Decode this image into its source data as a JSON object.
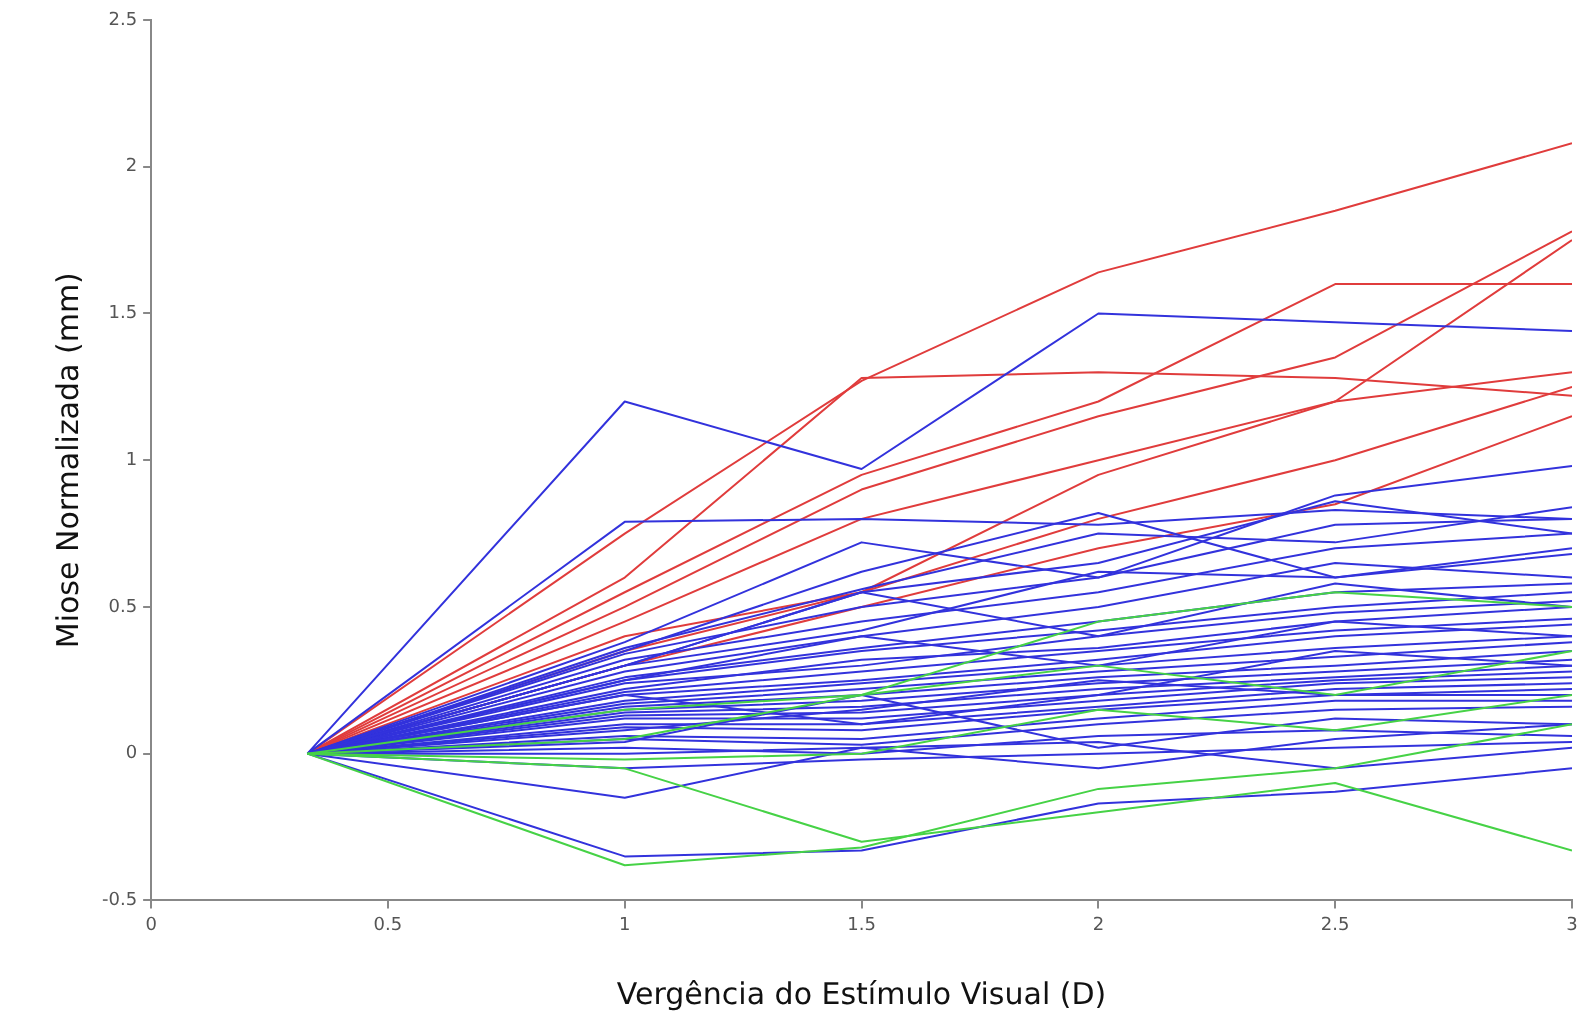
{
  "chart_data": {
    "type": "line",
    "xlabel": "Vergência do Estímulo Visual (D)",
    "ylabel": "Miose Normalizada (mm)",
    "x": [
      0.33,
      1,
      1.5,
      2,
      2.5,
      3
    ],
    "xlim": [
      0,
      3
    ],
    "xticks": [
      0,
      0.5,
      1,
      1.5,
      2,
      2.5,
      3
    ],
    "ylim": [
      -0.5,
      2.5
    ],
    "yticks": [
      -0.5,
      0,
      0.5,
      1,
      1.5,
      2,
      2.5
    ],
    "grid": false,
    "legend": false,
    "marker": "none",
    "line_style": "solid",
    "series": [
      {
        "color": "#e03c3c",
        "values": [
          0,
          0.75,
          1.27,
          1.64,
          1.85,
          2.08
        ]
      },
      {
        "color": "#e03c3c",
        "values": [
          0,
          0.6,
          1.28,
          1.3,
          1.28,
          1.22
        ]
      },
      {
        "color": "#e03c3c",
        "values": [
          0,
          0.55,
          0.95,
          1.2,
          1.6,
          1.6
        ]
      },
      {
        "color": "#e03c3c",
        "values": [
          0,
          0.5,
          0.9,
          1.15,
          1.35,
          1.78
        ]
      },
      {
        "color": "#e03c3c",
        "values": [
          0,
          0.45,
          0.8,
          1.0,
          1.2,
          1.75
        ]
      },
      {
        "color": "#e03c3c",
        "values": [
          0,
          0.4,
          0.55,
          0.95,
          1.2,
          1.3
        ]
      },
      {
        "color": "#e03c3c",
        "values": [
          0,
          0.35,
          0.55,
          0.8,
          1.0,
          1.25
        ]
      },
      {
        "color": "#e03c3c",
        "values": [
          0,
          0.3,
          0.5,
          0.7,
          0.85,
          1.15
        ]
      },
      {
        "color": "#3232dc",
        "values": [
          0,
          1.2,
          0.97,
          1.5,
          1.47,
          1.44
        ]
      },
      {
        "color": "#3232dc",
        "values": [
          0,
          0.79,
          0.8,
          0.78,
          0.83,
          0.8
        ]
      },
      {
        "color": "#3232dc",
        "values": [
          0,
          -0.35,
          -0.33,
          -0.17,
          -0.13,
          -0.05
        ]
      },
      {
        "color": "#3232dc",
        "values": [
          0,
          -0.15,
          0.02,
          -0.05,
          0.05,
          0.1
        ]
      },
      {
        "color": "#3232dc",
        "values": [
          0,
          0.38,
          0.72,
          0.6,
          0.88,
          0.98
        ]
      },
      {
        "color": "#3232dc",
        "values": [
          0,
          0.36,
          0.56,
          0.75,
          0.72,
          0.84
        ]
      },
      {
        "color": "#3232dc",
        "values": [
          0,
          0.34,
          0.5,
          0.6,
          0.78,
          0.8
        ]
      },
      {
        "color": "#3232dc",
        "values": [
          0,
          0.32,
          0.45,
          0.55,
          0.7,
          0.75
        ]
      },
      {
        "color": "#3232dc",
        "values": [
          0,
          0.3,
          0.42,
          0.62,
          0.6,
          0.68
        ]
      },
      {
        "color": "#3232dc",
        "values": [
          0,
          0.28,
          0.4,
          0.5,
          0.65,
          0.6
        ]
      },
      {
        "color": "#3232dc",
        "values": [
          0,
          0.26,
          0.36,
          0.45,
          0.55,
          0.58
        ]
      },
      {
        "color": "#3232dc",
        "values": [
          0,
          0.25,
          0.35,
          0.42,
          0.5,
          0.55
        ]
      },
      {
        "color": "#3232dc",
        "values": [
          0,
          0.24,
          0.3,
          0.4,
          0.48,
          0.52
        ]
      },
      {
        "color": "#3232dc",
        "values": [
          0,
          0.22,
          0.32,
          0.36,
          0.45,
          0.5
        ]
      },
      {
        "color": "#3232dc",
        "values": [
          0,
          0.21,
          0.28,
          0.35,
          0.42,
          0.46
        ]
      },
      {
        "color": "#3232dc",
        "values": [
          0,
          0.2,
          0.25,
          0.32,
          0.4,
          0.44
        ]
      },
      {
        "color": "#3232dc",
        "values": [
          0,
          0.18,
          0.24,
          0.3,
          0.36,
          0.4
        ]
      },
      {
        "color": "#3232dc",
        "values": [
          0,
          0.17,
          0.22,
          0.28,
          0.33,
          0.38
        ]
      },
      {
        "color": "#3232dc",
        "values": [
          0,
          0.16,
          0.2,
          0.26,
          0.3,
          0.35
        ]
      },
      {
        "color": "#3232dc",
        "values": [
          0,
          0.15,
          0.18,
          0.24,
          0.28,
          0.32
        ]
      },
      {
        "color": "#3232dc",
        "values": [
          0,
          0.14,
          0.16,
          0.22,
          0.26,
          0.3
        ]
      },
      {
        "color": "#3232dc",
        "values": [
          0,
          0.13,
          0.14,
          0.2,
          0.25,
          0.28
        ]
      },
      {
        "color": "#3232dc",
        "values": [
          0,
          0.12,
          0.12,
          0.18,
          0.24,
          0.26
        ]
      },
      {
        "color": "#3232dc",
        "values": [
          0,
          0.1,
          0.1,
          0.16,
          0.22,
          0.24
        ]
      },
      {
        "color": "#3232dc",
        "values": [
          0,
          0.09,
          0.08,
          0.15,
          0.2,
          0.22
        ]
      },
      {
        "color": "#3232dc",
        "values": [
          0,
          0.08,
          0.15,
          0.25,
          0.2,
          0.2
        ]
      },
      {
        "color": "#3232dc",
        "values": [
          0,
          0.06,
          0.05,
          0.12,
          0.18,
          0.18
        ]
      },
      {
        "color": "#3232dc",
        "values": [
          0,
          0.05,
          0.03,
          0.1,
          0.15,
          0.16
        ]
      },
      {
        "color": "#3232dc",
        "values": [
          0,
          0.04,
          0.2,
          0.02,
          0.12,
          0.1
        ]
      },
      {
        "color": "#3232dc",
        "values": [
          0,
          0.02,
          0.0,
          0.06,
          0.08,
          0.06
        ]
      },
      {
        "color": "#3232dc",
        "values": [
          0,
          0.0,
          0.02,
          0.04,
          -0.05,
          0.02
        ]
      },
      {
        "color": "#3232dc",
        "values": [
          0,
          0.35,
          0.62,
          0.82,
          0.6,
          0.7
        ]
      },
      {
        "color": "#3232dc",
        "values": [
          0,
          0.3,
          0.55,
          0.4,
          0.58,
          0.5
        ]
      },
      {
        "color": "#3232dc",
        "values": [
          0,
          0.25,
          0.4,
          0.3,
          0.45,
          0.4
        ]
      },
      {
        "color": "#3232dc",
        "values": [
          0,
          0.2,
          0.1,
          0.2,
          0.35,
          0.3
        ]
      },
      {
        "color": "#3232dc",
        "values": [
          0,
          -0.05,
          -0.02,
          0.0,
          0.02,
          0.04
        ]
      },
      {
        "color": "#3232dc",
        "values": [
          0,
          0.3,
          0.55,
          0.65,
          0.86,
          0.75
        ]
      },
      {
        "color": "#46d246",
        "values": [
          0,
          -0.38,
          -0.32,
          -0.12,
          -0.05,
          0.1
        ]
      },
      {
        "color": "#46d246",
        "values": [
          0,
          -0.05,
          -0.3,
          -0.2,
          -0.1,
          -0.33
        ]
      },
      {
        "color": "#46d246",
        "values": [
          0,
          0.15,
          0.2,
          0.3,
          0.2,
          0.35
        ]
      },
      {
        "color": "#46d246",
        "values": [
          0,
          0.05,
          0.2,
          0.45,
          0.55,
          0.5
        ]
      },
      {
        "color": "#46d246",
        "values": [
          0,
          -0.02,
          0.0,
          0.15,
          0.08,
          0.2
        ]
      }
    ]
  }
}
